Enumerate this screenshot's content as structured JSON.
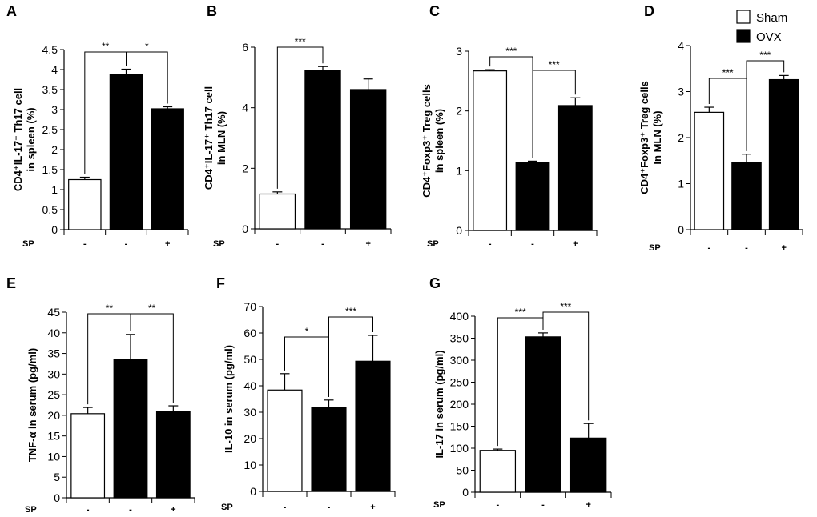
{
  "legend": [
    {
      "label": "Sham",
      "color": "#ffffff"
    },
    {
      "label": "OVX",
      "color": "#000000"
    }
  ],
  "treatment_label": "SP",
  "treatment_levels": [
    "-",
    "-",
    "+"
  ],
  "chart_data": [
    {
      "panel": "A",
      "type": "bar",
      "categories": [
        "Sham",
        "OVX",
        "OVX+SP"
      ],
      "values": [
        1.25,
        3.88,
        3.02
      ],
      "errors": [
        0.06,
        0.13,
        0.05
      ],
      "ylabel_lines": [
        "CD4⁺IL-17⁺ Th17 cell",
        "in spleen (%)"
      ],
      "ylim": [
        0,
        4.5
      ],
      "yticks": [
        "0",
        "0.5",
        "1",
        "1.5",
        "2",
        "2.5",
        "3",
        "3.5",
        "4",
        "4.5"
      ],
      "significance": [
        {
          "from": 0,
          "to": 1,
          "label": "**"
        },
        {
          "from": 1,
          "to": 2,
          "label": "*"
        }
      ]
    },
    {
      "panel": "B",
      "type": "bar",
      "categories": [
        "Sham",
        "OVX",
        "OVX+SP"
      ],
      "values": [
        1.15,
        5.22,
        4.6
      ],
      "errors": [
        0.07,
        0.14,
        0.35
      ],
      "ylabel_lines": [
        "CD4⁺IL-17⁺ Th17 cell",
        "in MLN (%)"
      ],
      "ylim": [
        0,
        6
      ],
      "yticks": [
        "0",
        "2",
        "4",
        "6"
      ],
      "significance": [
        {
          "from": 0,
          "to": 1,
          "label": "***"
        }
      ]
    },
    {
      "panel": "C",
      "type": "bar",
      "categories": [
        "Sham",
        "OVX",
        "OVX+SP"
      ],
      "values": [
        2.67,
        1.14,
        2.09
      ],
      "errors": [
        0.02,
        0.02,
        0.13
      ],
      "ylabel_lines": [
        "CD4⁺Foxp3⁺ Treg cells",
        "in spleen (%)"
      ],
      "ylim": [
        0,
        3
      ],
      "yticks": [
        "0",
        "1",
        "2",
        "3"
      ],
      "significance": [
        {
          "from": 0,
          "to": 1,
          "label": "***"
        },
        {
          "from": 1,
          "to": 2,
          "label": "***"
        }
      ]
    },
    {
      "panel": "D",
      "type": "bar",
      "categories": [
        "Sham",
        "OVX",
        "OVX+SP"
      ],
      "values": [
        2.55,
        1.46,
        3.26
      ],
      "errors": [
        0.11,
        0.18,
        0.09
      ],
      "ylabel_lines": [
        "CD4⁺Foxp3⁺ Treg cells",
        "In MLN (%)"
      ],
      "ylim": [
        0,
        4
      ],
      "yticks": [
        "0",
        "1",
        "2",
        "3",
        "4"
      ],
      "significance": [
        {
          "from": 0,
          "to": 1,
          "label": "***"
        },
        {
          "from": 1,
          "to": 2,
          "label": "***"
        }
      ]
    },
    {
      "panel": "E",
      "type": "bar",
      "categories": [
        "Sham",
        "OVX",
        "OVX+SP"
      ],
      "values": [
        20.4,
        33.6,
        21.0
      ],
      "errors": [
        1.5,
        6.0,
        1.3
      ],
      "ylabel_lines": [
        "TNF-α in serum (pg/ml)"
      ],
      "ylim": [
        0,
        45
      ],
      "yticks": [
        "0",
        "5",
        "10",
        "15",
        "20",
        "25",
        "30",
        "35",
        "40",
        "45"
      ],
      "significance": [
        {
          "from": 0,
          "to": 1,
          "label": "**"
        },
        {
          "from": 1,
          "to": 2,
          "label": "**"
        }
      ]
    },
    {
      "panel": "F",
      "type": "bar",
      "categories": [
        "Sham",
        "OVX",
        "OVX+SP"
      ],
      "values": [
        38.4,
        31.7,
        49.3
      ],
      "errors": [
        6.2,
        2.9,
        9.8
      ],
      "ylabel_lines": [
        "IL-10 in serum (pg/ml)"
      ],
      "ylim": [
        0,
        70
      ],
      "yticks": [
        "0",
        "10",
        "20",
        "30",
        "40",
        "50",
        "60",
        "70"
      ],
      "significance": [
        {
          "from": 0,
          "to": 1,
          "label": "*"
        },
        {
          "from": 1,
          "to": 2,
          "label": "***"
        }
      ]
    },
    {
      "panel": "G",
      "type": "bar",
      "categories": [
        "Sham",
        "OVX",
        "OVX+SP"
      ],
      "values": [
        95,
        353,
        123
      ],
      "errors": [
        3,
        9,
        33
      ],
      "ylabel_lines": [
        "IL-17 in serum (pg/ml)"
      ],
      "ylim": [
        0,
        400
      ],
      "yticks": [
        "0",
        "50",
        "100",
        "150",
        "200",
        "250",
        "300",
        "350",
        "400"
      ],
      "significance": [
        {
          "from": 0,
          "to": 1,
          "label": "***"
        },
        {
          "from": 1,
          "to": 2,
          "label": "***"
        }
      ]
    }
  ]
}
